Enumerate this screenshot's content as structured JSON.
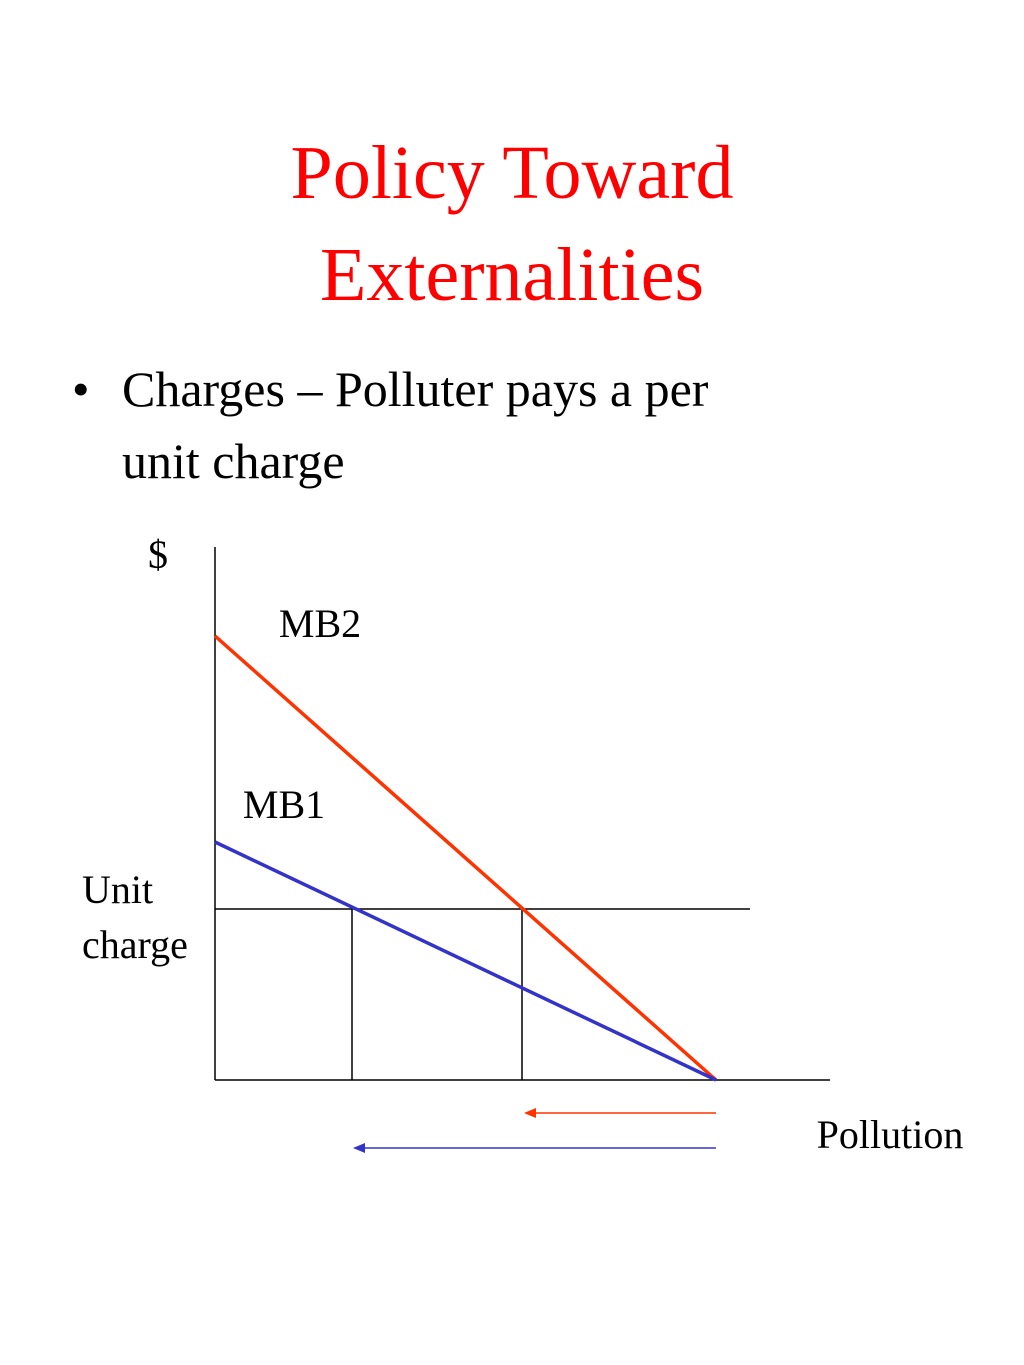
{
  "title": {
    "lines": [
      "Policy Toward",
      "Externalities"
    ]
  },
  "bullet": {
    "lines": [
      "Charges – Polluter pays a per",
      "unit charge"
    ]
  },
  "diagram": {
    "y_axis_label": "$",
    "x_axis_label": "Pollution",
    "charge_label": {
      "lines": [
        "Unit",
        "charge"
      ]
    },
    "curves": [
      {
        "label": "MB2"
      },
      {
        "label": "MB1"
      }
    ]
  }
}
